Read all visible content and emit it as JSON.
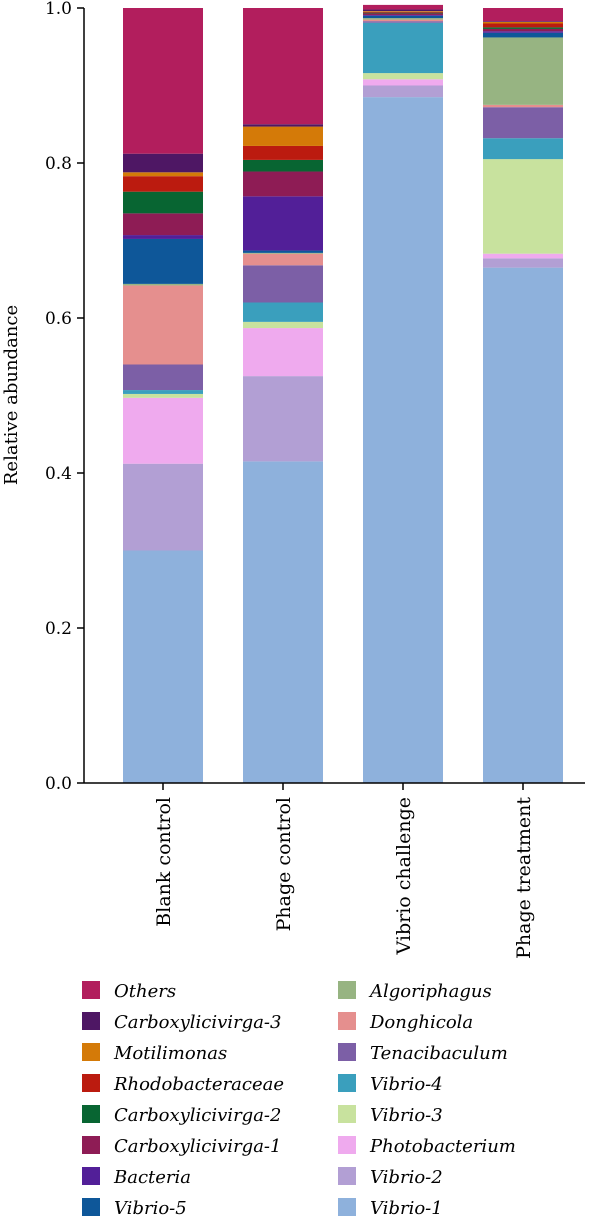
{
  "chart_data": {
    "type": "bar",
    "stacked": true,
    "ylabel": "Relative abundance",
    "ylim": [
      0,
      1.0
    ],
    "yticks": [
      "0.0",
      "0.2",
      "0.4",
      "0.6",
      "0.8",
      "1.0"
    ],
    "categories": [
      "Blank control",
      "Phage control",
      "Vibrio challenge",
      "Phage treatment"
    ],
    "series": [
      {
        "name": "Vibrio-1",
        "color": "#8eb1dc",
        "values": [
          0.3,
          0.415,
          0.885,
          0.665
        ]
      },
      {
        "name": "Vibrio-2",
        "color": "#b29fd4",
        "values": [
          0.112,
          0.11,
          0.015,
          0.012
        ]
      },
      {
        "name": "Photobacterium",
        "color": "#efaaee",
        "values": [
          0.085,
          0.062,
          0.008,
          0.006
        ]
      },
      {
        "name": "Vibrio-3",
        "color": "#c8e29e",
        "values": [
          0.005,
          0.008,
          0.008,
          0.122
        ]
      },
      {
        "name": "Vibrio-4",
        "color": "#3a9fbd",
        "values": [
          0.005,
          0.025,
          0.065,
          0.027
        ]
      },
      {
        "name": "Tenacibaculum",
        "color": "#7c5fa6",
        "values": [
          0.033,
          0.048,
          0.002,
          0.04
        ]
      },
      {
        "name": "Donghicola",
        "color": "#e58f8e",
        "values": [
          0.102,
          0.015,
          0.002,
          0.003
        ]
      },
      {
        "name": "Algoriphagus",
        "color": "#97b482",
        "values": [
          0.002,
          0.001,
          0.002,
          0.087
        ]
      },
      {
        "name": "Vibrio-5",
        "color": "#0e5799",
        "values": [
          0.058,
          0.003,
          0.003,
          0.006
        ]
      },
      {
        "name": "Bacteria",
        "color": "#521f98",
        "values": [
          0.005,
          0.07,
          0.001,
          0.002
        ]
      },
      {
        "name": "Carboxylicivirga-1",
        "color": "#8e1c55",
        "values": [
          0.028,
          0.032,
          0.002,
          0.003
        ]
      },
      {
        "name": "Carboxylicivirga-2",
        "color": "#086532",
        "values": [
          0.028,
          0.015,
          0.001,
          0.002
        ]
      },
      {
        "name": "Rhodobacteraceae",
        "color": "#bb1b0f",
        "values": [
          0.02,
          0.018,
          0.001,
          0.005
        ]
      },
      {
        "name": "Motilimonas",
        "color": "#d47a08",
        "values": [
          0.005,
          0.025,
          0.001,
          0.002
        ]
      },
      {
        "name": "Carboxylicivirga-3",
        "color": "#4e1764",
        "values": [
          0.024,
          0.003,
          0.002,
          0.001
        ]
      },
      {
        "name": "Others",
        "color": "#b21e5d",
        "values": [
          0.188,
          0.15,
          0.006,
          0.017
        ]
      }
    ],
    "legend": {
      "column1": [
        "Others",
        "Carboxylicivirga-3",
        "Motilimonas",
        "Rhodobacteraceae",
        "Carboxylicivirga-2",
        "Carboxylicivirga-1",
        "Bacteria",
        "Vibrio-5"
      ],
      "column2": [
        "Algoriphagus",
        "Donghicola",
        "Tenacibaculum",
        "Vibrio-4",
        "Vibrio-3",
        "Photobacterium",
        "Vibrio-2",
        "Vibrio-1"
      ]
    }
  }
}
